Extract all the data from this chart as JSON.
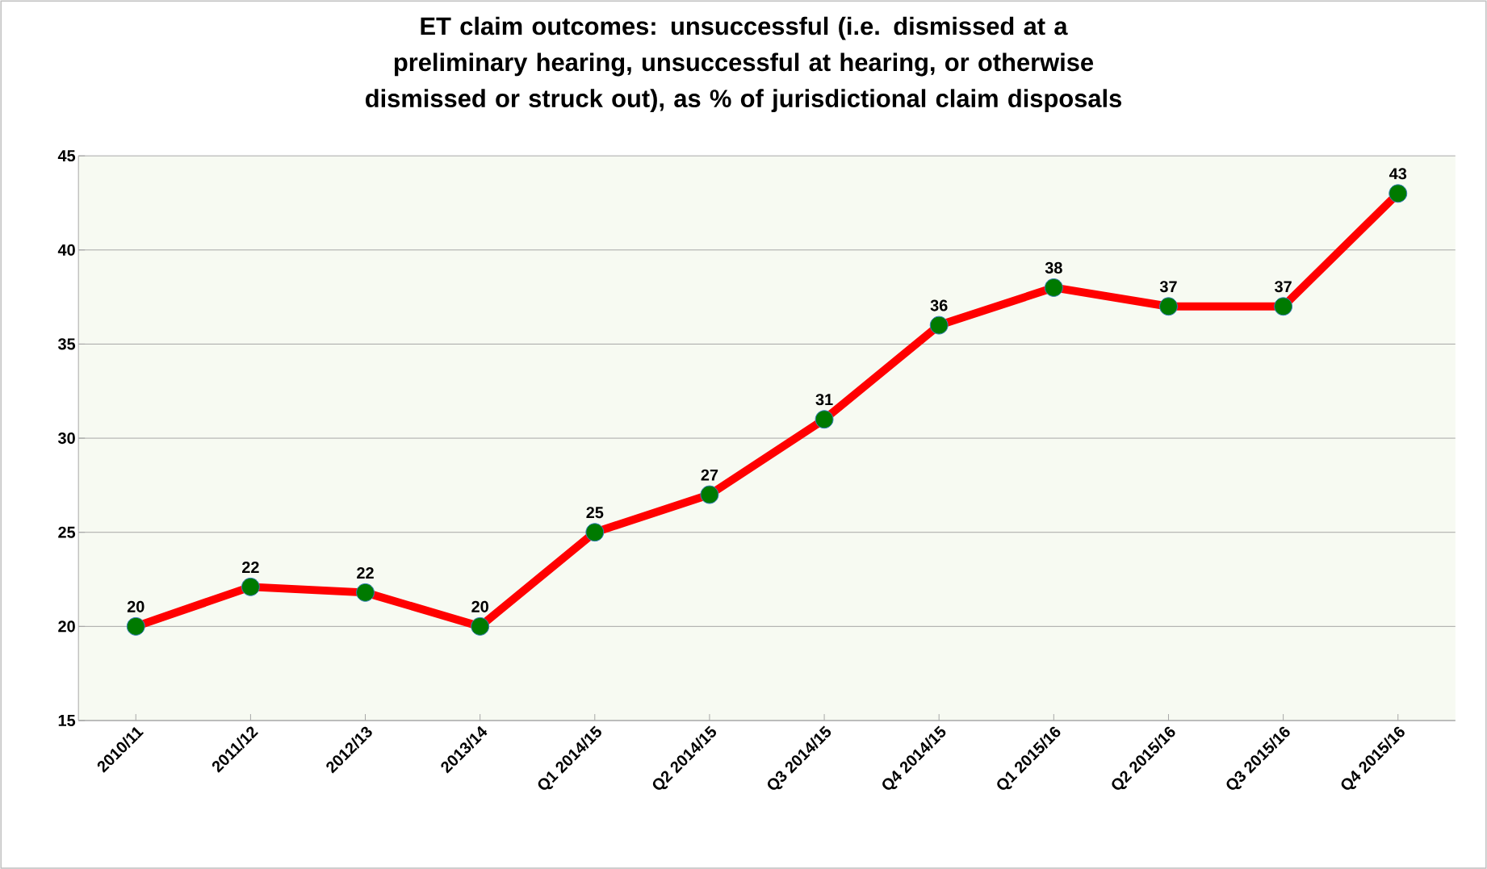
{
  "chart_data": {
    "type": "line",
    "title": "ET claim outcomes: unsuccessful (i.e. dismissed at a preliminary hearing, unsuccessful at hearing, or otherwise dismissed or struck out), as % of jurisdictional claim disposals",
    "categories": [
      "2010/11",
      "2011/12",
      "2012/13",
      "2013/14",
      "Q1 2014/15",
      "Q2 2014/15",
      "Q3 2014/15",
      "Q4 2014/15",
      "Q1 2015/16",
      "Q2 2015/16",
      "Q3 2015/16",
      "Q4 2015/16"
    ],
    "series": [
      {
        "color": "#ff0000",
        "values": [
          20,
          22.1,
          21.8,
          20,
          25,
          27,
          31,
          36,
          38,
          37,
          37,
          43
        ]
      }
    ],
    "value_labels": [
      "20",
      "22",
      "22",
      "20",
      "25",
      "27",
      "31",
      "36",
      "38",
      "37",
      "37",
      "43"
    ],
    "ylim": [
      15,
      45
    ],
    "yticks": [
      15,
      20,
      25,
      30,
      35,
      40,
      45
    ],
    "grid": "y",
    "marker": "circle",
    "line_style": "solid"
  }
}
